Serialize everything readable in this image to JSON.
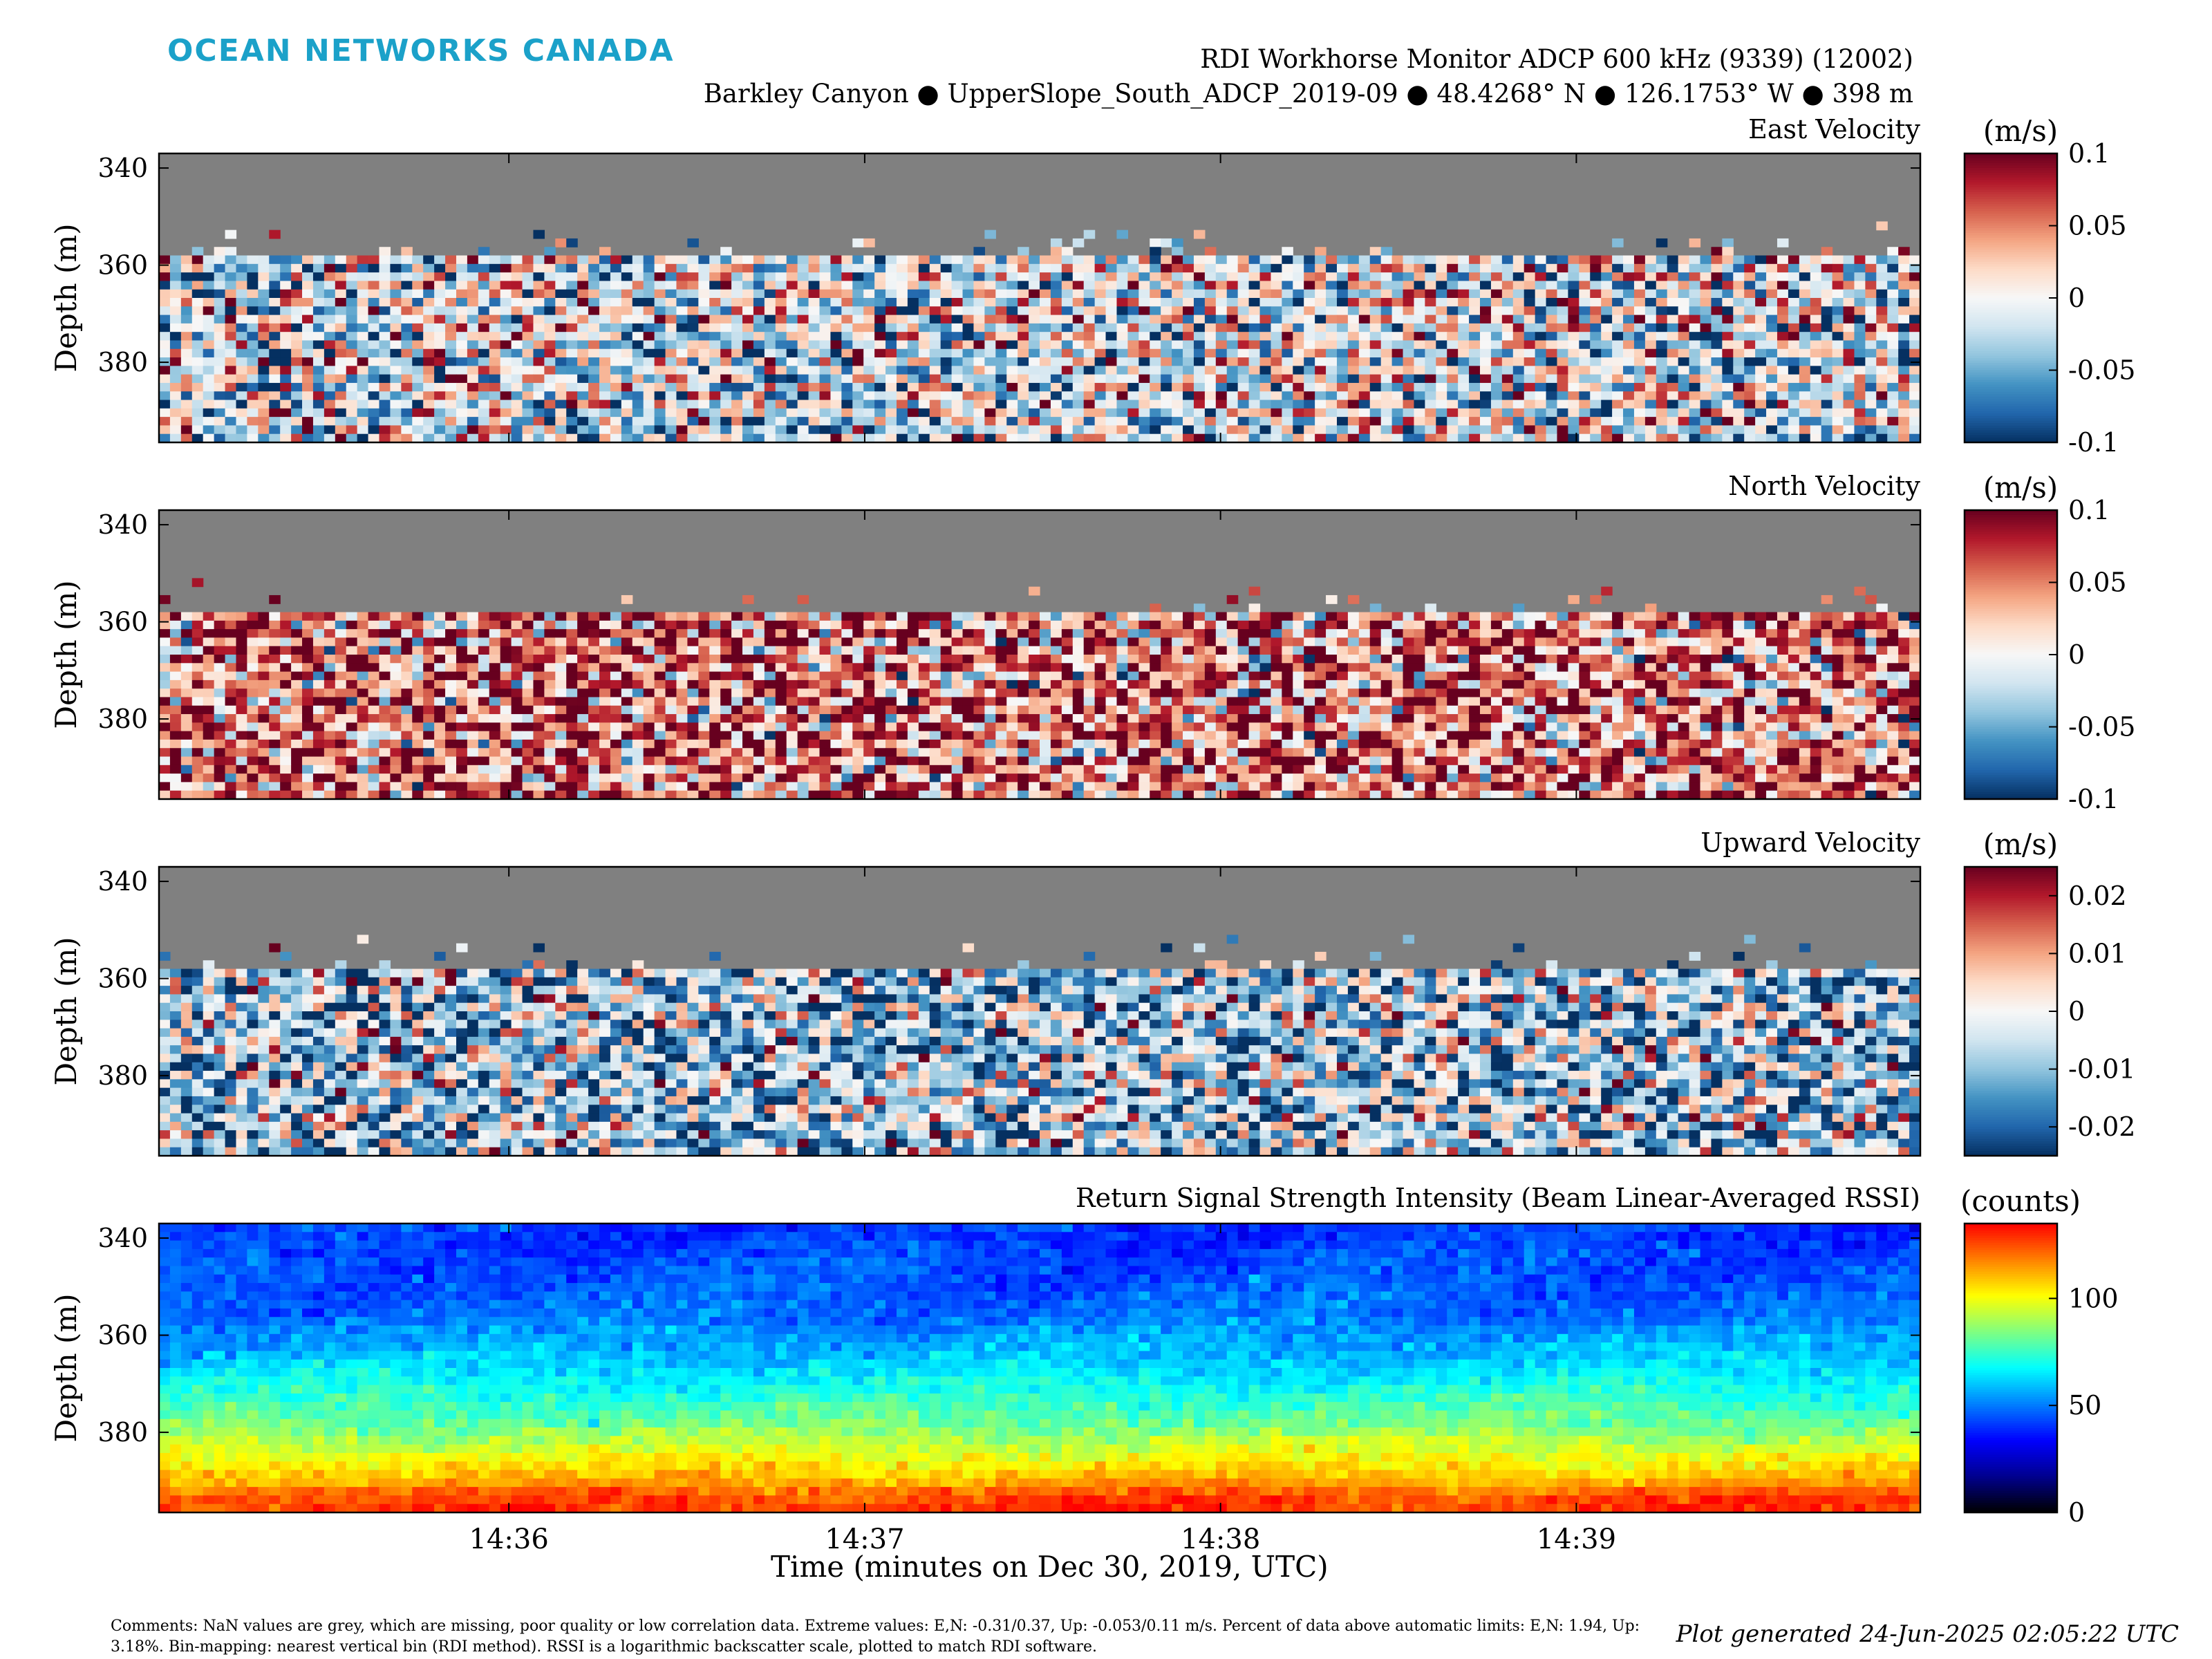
{
  "header": {
    "logo_text": "OCEAN NETWORKS CANADA",
    "title_line1": "RDI Workhorse Monitor ADCP 600 kHz (9339) (12002)",
    "title_line2": "Barkley Canyon ● UpperSlope_South_ADCP_2019-09 ● 48.4268° N ● 126.1753° W ● 398 m"
  },
  "footer": {
    "comments": "Comments: NaN values are grey, which are missing, poor quality or low correlation data. Extreme values: E,N: -0.31/0.37, Up: -0.053/0.11 m/s. Percent of data above automatic limits: E,N: 1.94, Up: 3.18%. Bin-mapping: nearest vertical bin (RDI method). RSSI is a logarithmic backscatter scale, plotted to match RDI software.",
    "generated": "Plot generated 24-Jun-2025 02:05:22 UTC"
  },
  "colors": {
    "nan_grey": "#808080",
    "logo": "#1ba1c9",
    "diverging_map": [
      "#053061",
      "#2166ac",
      "#4393c3",
      "#92c5de",
      "#d1e5f0",
      "#f7f7f7",
      "#fddbc7",
      "#f4a582",
      "#d6604d",
      "#b2182b",
      "#67001f"
    ],
    "rssi_map": [
      "#000000",
      "#00008f",
      "#0000ff",
      "#0080ff",
      "#00ffff",
      "#80ff80",
      "#ffff00",
      "#ff8000",
      "#ff0000"
    ]
  },
  "chart_data": {
    "type": "heatmap",
    "x_axis_label": "Time (minutes on Dec 30, 2019, UTC)",
    "x_range_minutes": [
      "14:35:01",
      "14:39:58"
    ],
    "x_ticks": [
      "14:36",
      "14:37",
      "14:38",
      "14:39"
    ],
    "y_axis_label": "Depth (m)",
    "y_range_m": [
      337,
      396.5
    ],
    "y_reversed": true,
    "y_ticks": [
      "340",
      "360",
      "380"
    ],
    "panels": [
      {
        "title": "East Velocity",
        "unit": "(m/s)",
        "clim": [
          -0.1,
          0.1
        ],
        "colorbar_ticks": [
          "0.1",
          "0.05",
          "0",
          "-0.05",
          "-0.1"
        ],
        "colormap": "diverging",
        "valid_depth_start_m": 357,
        "mean_value": -0.01
      },
      {
        "title": "North Velocity",
        "unit": "(m/s)",
        "clim": [
          -0.1,
          0.1
        ],
        "colorbar_ticks": [
          "0.1",
          "0.05",
          "0",
          "-0.05",
          "-0.1"
        ],
        "colormap": "diverging",
        "valid_depth_start_m": 357,
        "mean_value": 0.05
      },
      {
        "title": "Upward Velocity",
        "unit": "(m/s)",
        "clim": [
          -0.025,
          0.025
        ],
        "colorbar_ticks": [
          "0.02",
          "0.01",
          "0",
          "-0.01",
          "-0.02"
        ],
        "colormap": "diverging",
        "valid_depth_start_m": 357,
        "mean_value": -0.008
      },
      {
        "title": "Return Signal Strength Intensity (Beam Linear-Averaged RSSI)",
        "unit": "(counts)",
        "clim": [
          0,
          135
        ],
        "colorbar_ticks": [
          "100",
          "50",
          "0"
        ],
        "colormap": "rssi",
        "depth_profile_counts": [
          [
            337,
            40
          ],
          [
            355,
            48
          ],
          [
            365,
            60
          ],
          [
            372,
            72
          ],
          [
            378,
            82
          ],
          [
            385,
            100
          ],
          [
            390,
            112
          ],
          [
            393,
            125
          ],
          [
            396,
            128
          ]
        ]
      }
    ]
  }
}
